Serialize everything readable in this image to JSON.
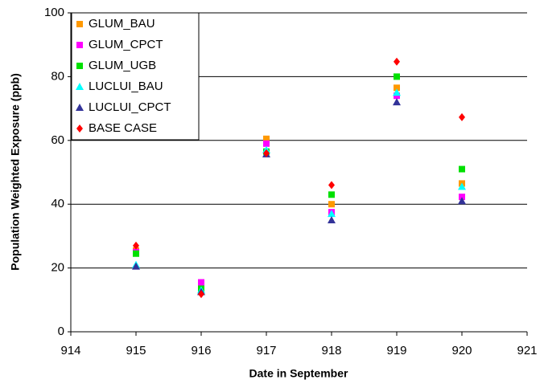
{
  "chart_data": {
    "type": "scatter",
    "x_label": "Date in September",
    "y_label": "Population Weighted Exposure (ppb)",
    "x": [
      915,
      916,
      917,
      918,
      919,
      920
    ],
    "series": [
      {
        "name": "GLUM_BAU",
        "color": "#ff9900",
        "marker": "square",
        "values": [
          25.5,
          15,
          60.5,
          40,
          76.5,
          46.5
        ]
      },
      {
        "name": "GLUM_CPCT",
        "color": "#ff00ff",
        "marker": "square",
        "values": [
          25,
          15.5,
          59,
          37.5,
          74,
          42.3
        ]
      },
      {
        "name": "GLUM_UGB",
        "color": "#00e000",
        "marker": "square",
        "values": [
          24.5,
          13.5,
          56.5,
          43,
          80,
          51
        ]
      },
      {
        "name": "LUCLUI_BAU",
        "color": "#00ffff",
        "marker": "triangle",
        "values": [
          21,
          13,
          57,
          37,
          75,
          45.5
        ]
      },
      {
        "name": "LUCLUI_CPCT",
        "color": "#333399",
        "marker": "triangle",
        "values": [
          20.5,
          12.5,
          55.7,
          35,
          72,
          41
        ]
      },
      {
        "name": "BASE CASE",
        "color": "#ff0000",
        "marker": "diamond",
        "values": [
          27,
          11.8,
          56,
          46,
          84.7,
          67.3
        ]
      }
    ],
    "xlim": [
      914,
      921
    ],
    "xticks": [
      914,
      915,
      916,
      917,
      918,
      919,
      920,
      921
    ],
    "ylim": [
      0,
      100
    ],
    "yticks": [
      0,
      20,
      40,
      60,
      80,
      100
    ],
    "grid": true,
    "legend": "top-left"
  }
}
